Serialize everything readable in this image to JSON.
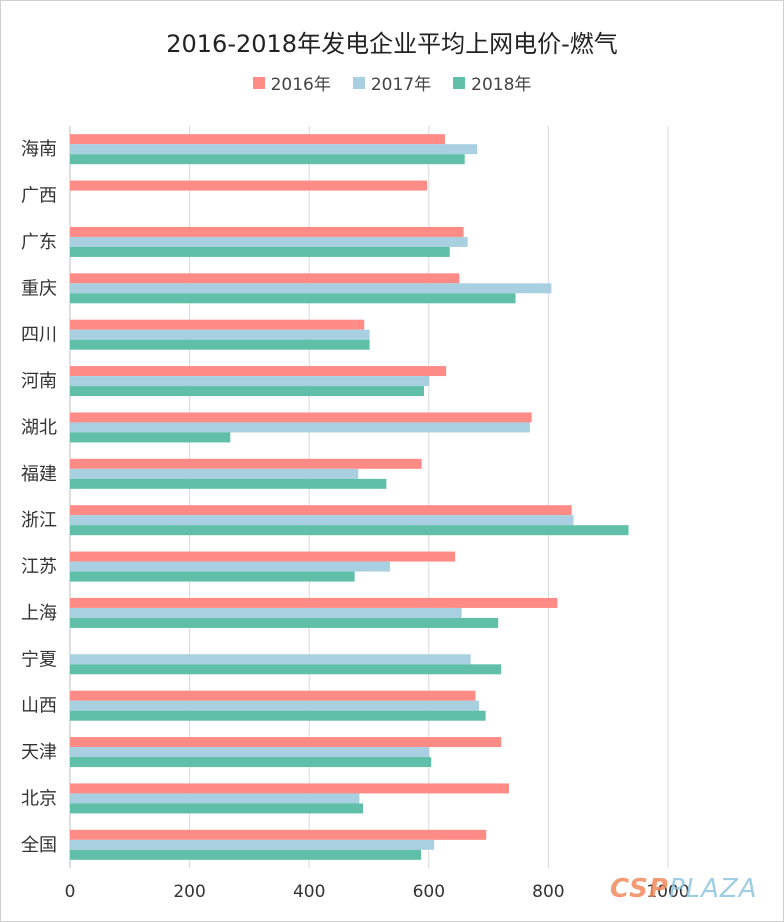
{
  "chart_data": {
    "type": "bar",
    "orientation": "horizontal",
    "title": "2016-2018年发电企业平均上网电价-燃气",
    "categories": [
      "海南",
      "广西",
      "广东",
      "重庆",
      "四川",
      "河南",
      "湖北",
      "福建",
      "浙江",
      "江苏",
      "上海",
      "宁夏",
      "山西",
      "天津",
      "北京",
      "全国"
    ],
    "series": [
      {
        "name": "2016年",
        "color": "#ff8b87",
        "values": [
          627,
          597,
          658,
          651,
          492,
          629,
          772,
          588,
          839,
          644,
          815,
          null,
          678,
          721,
          734,
          696
        ]
      },
      {
        "name": "2017年",
        "color": "#a9d0e0",
        "values": [
          681,
          null,
          665,
          805,
          501,
          601,
          769,
          482,
          842,
          535,
          655,
          670,
          684,
          601,
          484,
          609
        ]
      },
      {
        "name": "2018年",
        "color": "#5fbfa8",
        "values": [
          660,
          null,
          635,
          745,
          501,
          592,
          268,
          529,
          934,
          476,
          716,
          721,
          695,
          604,
          490,
          587
        ]
      }
    ],
    "xlim": [
      0,
      1000
    ],
    "xticks": [
      "0",
      "200",
      "400",
      "600",
      "800",
      "1000"
    ],
    "grid": true,
    "legend_position": "top-center"
  },
  "watermark": {
    "part1": "CSP",
    "part2": "PLAZA"
  }
}
